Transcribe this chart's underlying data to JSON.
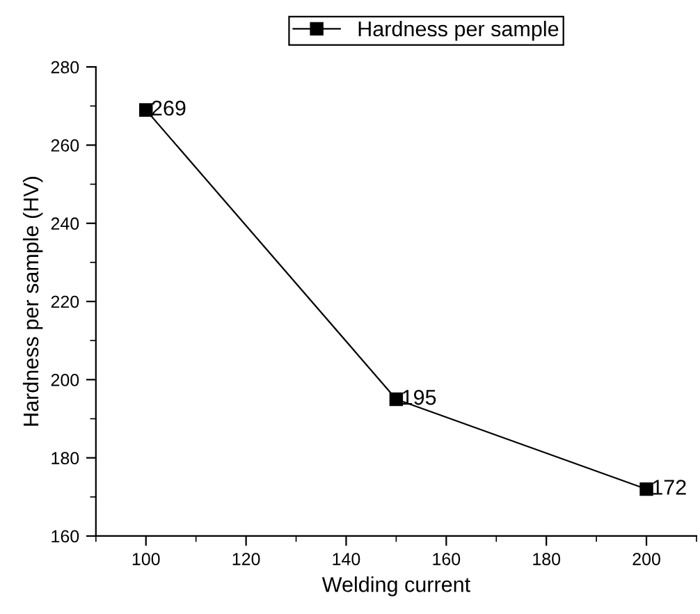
{
  "chart_data": {
    "type": "line",
    "xlabel": "Welding current",
    "ylabel": "Hardness per sample (HV)",
    "x": [
      100,
      150,
      200
    ],
    "series": [
      {
        "name": "Hardness per sample",
        "color": "#000000",
        "values": [
          269,
          195,
          172
        ]
      }
    ],
    "xlim": [
      90,
      210
    ],
    "xticks": [
      100,
      120,
      140,
      160,
      180,
      200
    ],
    "ylim": [
      160,
      280
    ],
    "yticks": [
      160,
      180,
      200,
      220,
      240,
      260,
      280
    ],
    "marker": "square",
    "line_style": "solid",
    "data_labels": true,
    "legend": "top",
    "grid": false
  }
}
